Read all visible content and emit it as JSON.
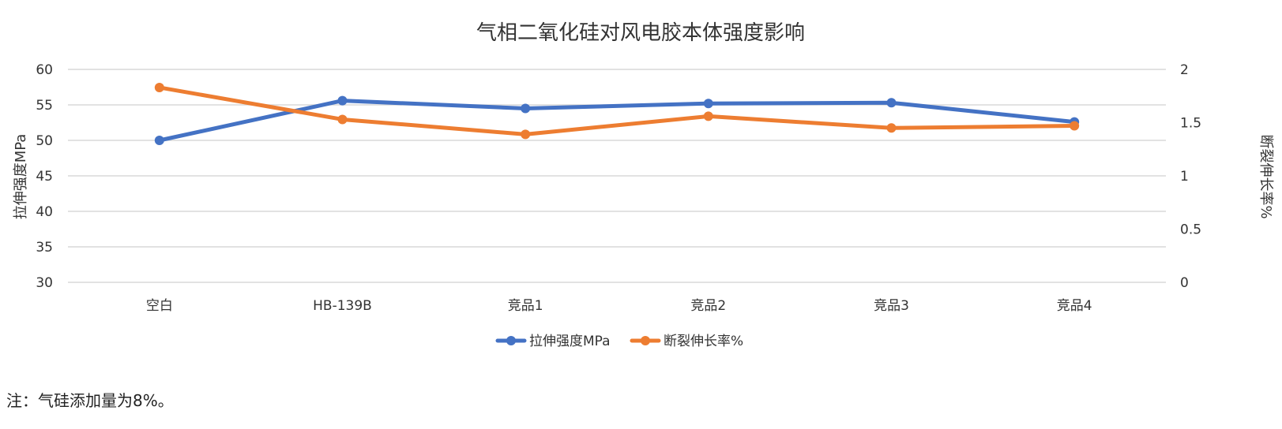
{
  "chart_data": {
    "type": "line",
    "title": "气相二氧化硅对风电胶本体强度影响",
    "categories": [
      "空白",
      "HB-139B",
      "竞品1",
      "竞品2",
      "竞品3",
      "竞品4"
    ],
    "ylabel_left": "拉伸强度MPa",
    "ylabel_right": "断裂伸长率%",
    "ylim_left": [
      30,
      60
    ],
    "ylim_right": [
      0,
      2
    ],
    "yticks_left": [
      "60",
      "55",
      "50",
      "45",
      "40",
      "35",
      "30"
    ],
    "yticks_right": [
      "2",
      "1.5",
      "1",
      "0.5",
      "0"
    ],
    "grid": true,
    "legend_position": "bottom",
    "series": [
      {
        "name": "拉伸强度MPa",
        "axis": "left",
        "color": "#4472C4",
        "values": [
          50.0,
          55.6,
          54.5,
          55.2,
          55.3,
          52.6
        ]
      },
      {
        "name": "断裂伸长率%",
        "axis": "right",
        "color": "#ED7D31",
        "values": [
          1.83,
          1.53,
          1.39,
          1.56,
          1.45,
          1.47
        ]
      }
    ]
  },
  "note": "注：气硅添加量为8%。"
}
